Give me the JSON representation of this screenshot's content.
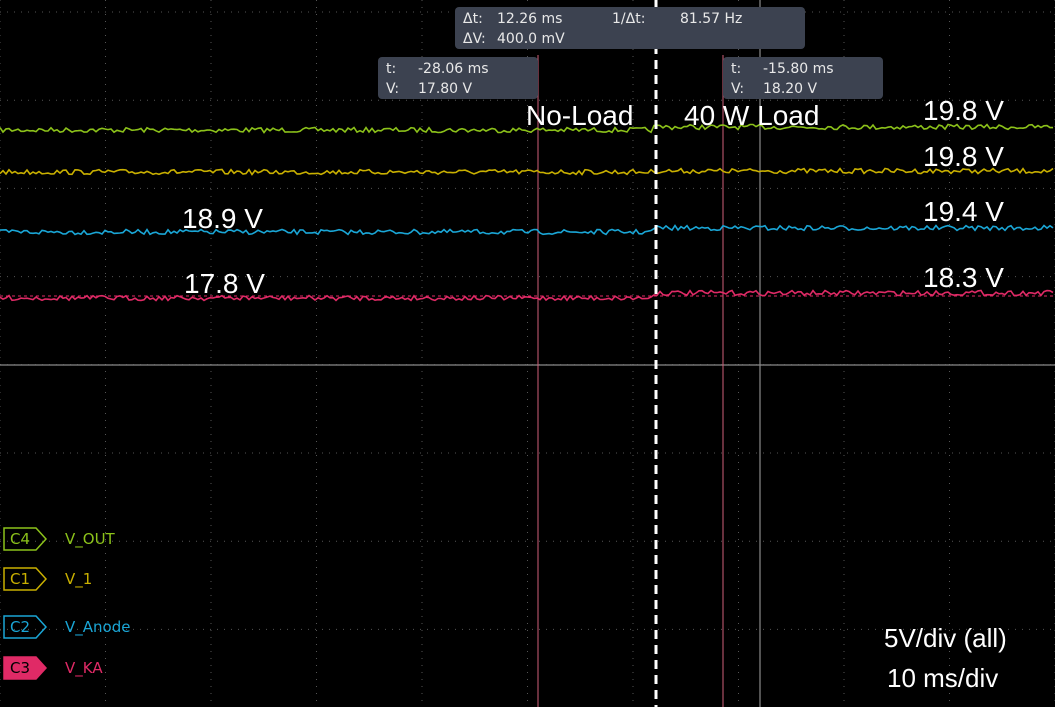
{
  "delta_readout": {
    "dt_label": "Δt:",
    "dt": "12.26 ms",
    "inv_label": "1/Δt:",
    "inv": "81.57 Hz",
    "dv_label": "ΔV:",
    "dv": "400.0 mV"
  },
  "cursor_a": {
    "t_label": "t:",
    "t": "-28.06 ms",
    "v_label": "V:",
    "v": "17.80 V"
  },
  "cursor_b": {
    "t_label": "t:",
    "t": "-15.80 ms",
    "v_label": "V:",
    "v": "18.20 V"
  },
  "annotations": {
    "no_load": "No-Load",
    "load": "40 W Load",
    "v_out_right": "19.8 V",
    "v_1_right": "19.8 V",
    "v_anode_right": "19.4 V",
    "v_ka_right": "18.3 V",
    "v_anode_left": "18.9 V",
    "v_ka_left": "17.8 V"
  },
  "channels": [
    {
      "id": "C4",
      "name": "V_OUT"
    },
    {
      "id": "C1",
      "name": "V_1"
    },
    {
      "id": "C2",
      "name": "V_Anode"
    },
    {
      "id": "C3",
      "name": "V_KA"
    }
  ],
  "scale": {
    "volts": "5V/div (all)",
    "time": "10 ms/div"
  }
}
